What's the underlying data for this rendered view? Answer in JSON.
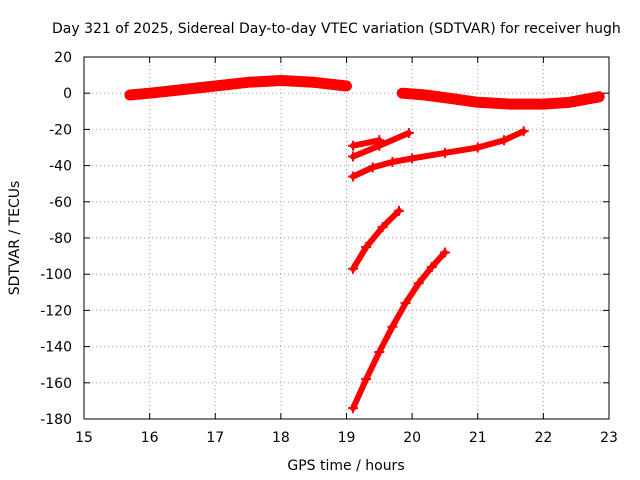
{
  "chart_data": {
    "type": "scatter",
    "title": "Day 321 of 2025, Sidereal Day-to-day VTEC variation (SDTVAR) for receiver hugh",
    "xlabel": "GPS time / hours",
    "ylabel": "SDTVAR / TECUs",
    "xlim": [
      15,
      23
    ],
    "ylim": [
      -180,
      20
    ],
    "xticks": [
      15,
      16,
      17,
      18,
      19,
      20,
      21,
      22,
      23
    ],
    "yticks": [
      20,
      0,
      -20,
      -40,
      -60,
      -80,
      -100,
      -120,
      -140,
      -160,
      -180
    ],
    "grid": true,
    "marker": "+",
    "color": "#ff0000",
    "series": [
      {
        "x": [
          15.7,
          16.0,
          16.5,
          17.0,
          17.5,
          18.0,
          18.5,
          19.0
        ],
        "y": [
          -1,
          0,
          2,
          4,
          6,
          7,
          6,
          4
        ]
      },
      {
        "x": [
          19.85,
          20.2,
          20.6,
          21.0,
          21.5,
          22.0,
          22.4,
          22.85
        ],
        "y": [
          0,
          -1,
          -3,
          -5,
          -6,
          -6,
          -5,
          -2
        ]
      },
      {
        "x": [
          19.1,
          19.5
        ],
        "y": [
          -29,
          -26
        ]
      },
      {
        "x": [
          19.1,
          19.5,
          19.95
        ],
        "y": [
          -35,
          -29,
          -22
        ]
      },
      {
        "x": [
          19.1,
          19.4,
          19.7,
          20.0,
          20.5,
          21.0,
          21.4,
          21.7
        ],
        "y": [
          -46,
          -41,
          -38,
          -36,
          -33,
          -30,
          -26,
          -21
        ]
      },
      {
        "x": [
          19.1,
          19.3,
          19.55,
          19.8
        ],
        "y": [
          -97,
          -85,
          -74,
          -65
        ]
      },
      {
        "x": [
          19.1,
          19.3,
          19.5,
          19.7,
          19.9,
          20.1,
          20.3,
          20.5
        ],
        "y": [
          -174,
          -158,
          -143,
          -129,
          -116,
          -105,
          -96,
          -88
        ]
      }
    ]
  }
}
